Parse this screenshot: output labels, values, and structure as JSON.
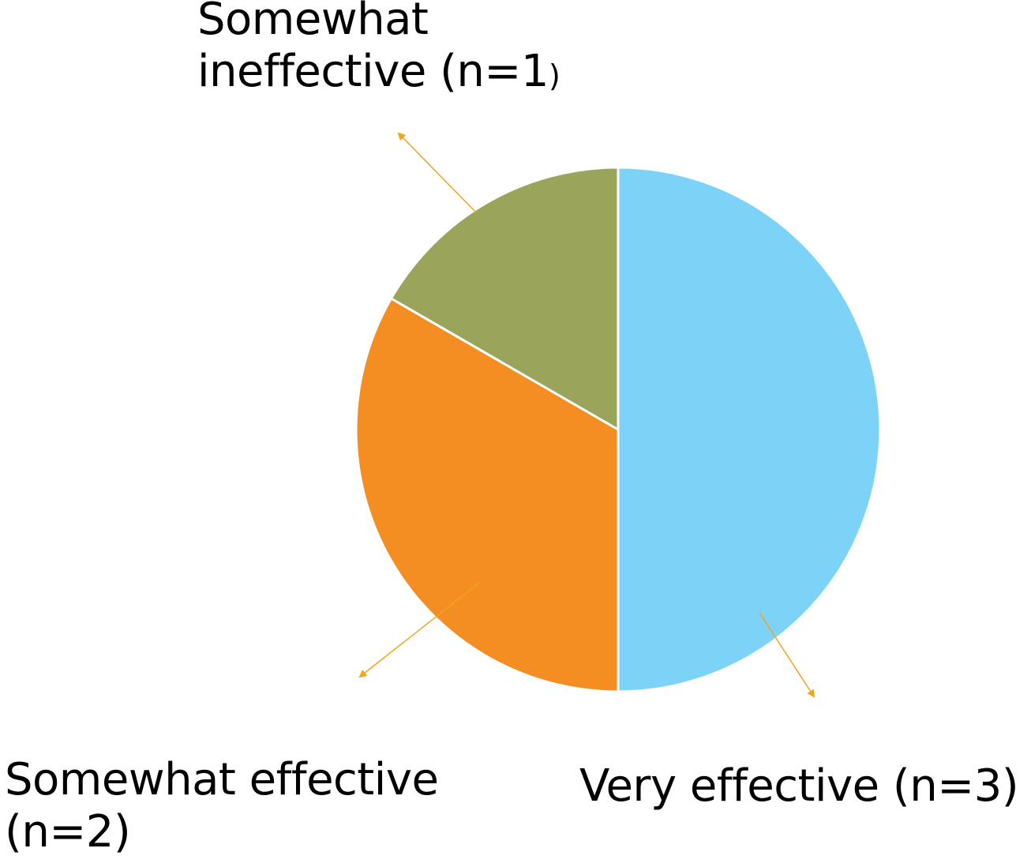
{
  "chart_data": {
    "type": "pie",
    "slices": [
      {
        "label": "Very effective",
        "n_label": "(n=3)",
        "value": 3,
        "color": "#7dd3f7"
      },
      {
        "label": "Somewhat effective",
        "n_label": "(n=2)",
        "value": 2,
        "color": "#f48e22"
      },
      {
        "label": "Somewhat ineffective",
        "n_label": "(n=1",
        "close_paren": ")",
        "value": 1,
        "color": "#9aa55b"
      }
    ],
    "leader_line_color": "#f2a41c",
    "start_angle_deg": 0,
    "direction": "clockwise"
  },
  "labels": {
    "ineffective_line1": "Somewhat",
    "ineffective_line2": "ineffective (n=1",
    "ineffective_paren": ")",
    "somewhat_effective_line1": "Somewhat effective",
    "somewhat_effective_line2": "(n=2)",
    "very_effective": "Very effective (n=3)"
  }
}
